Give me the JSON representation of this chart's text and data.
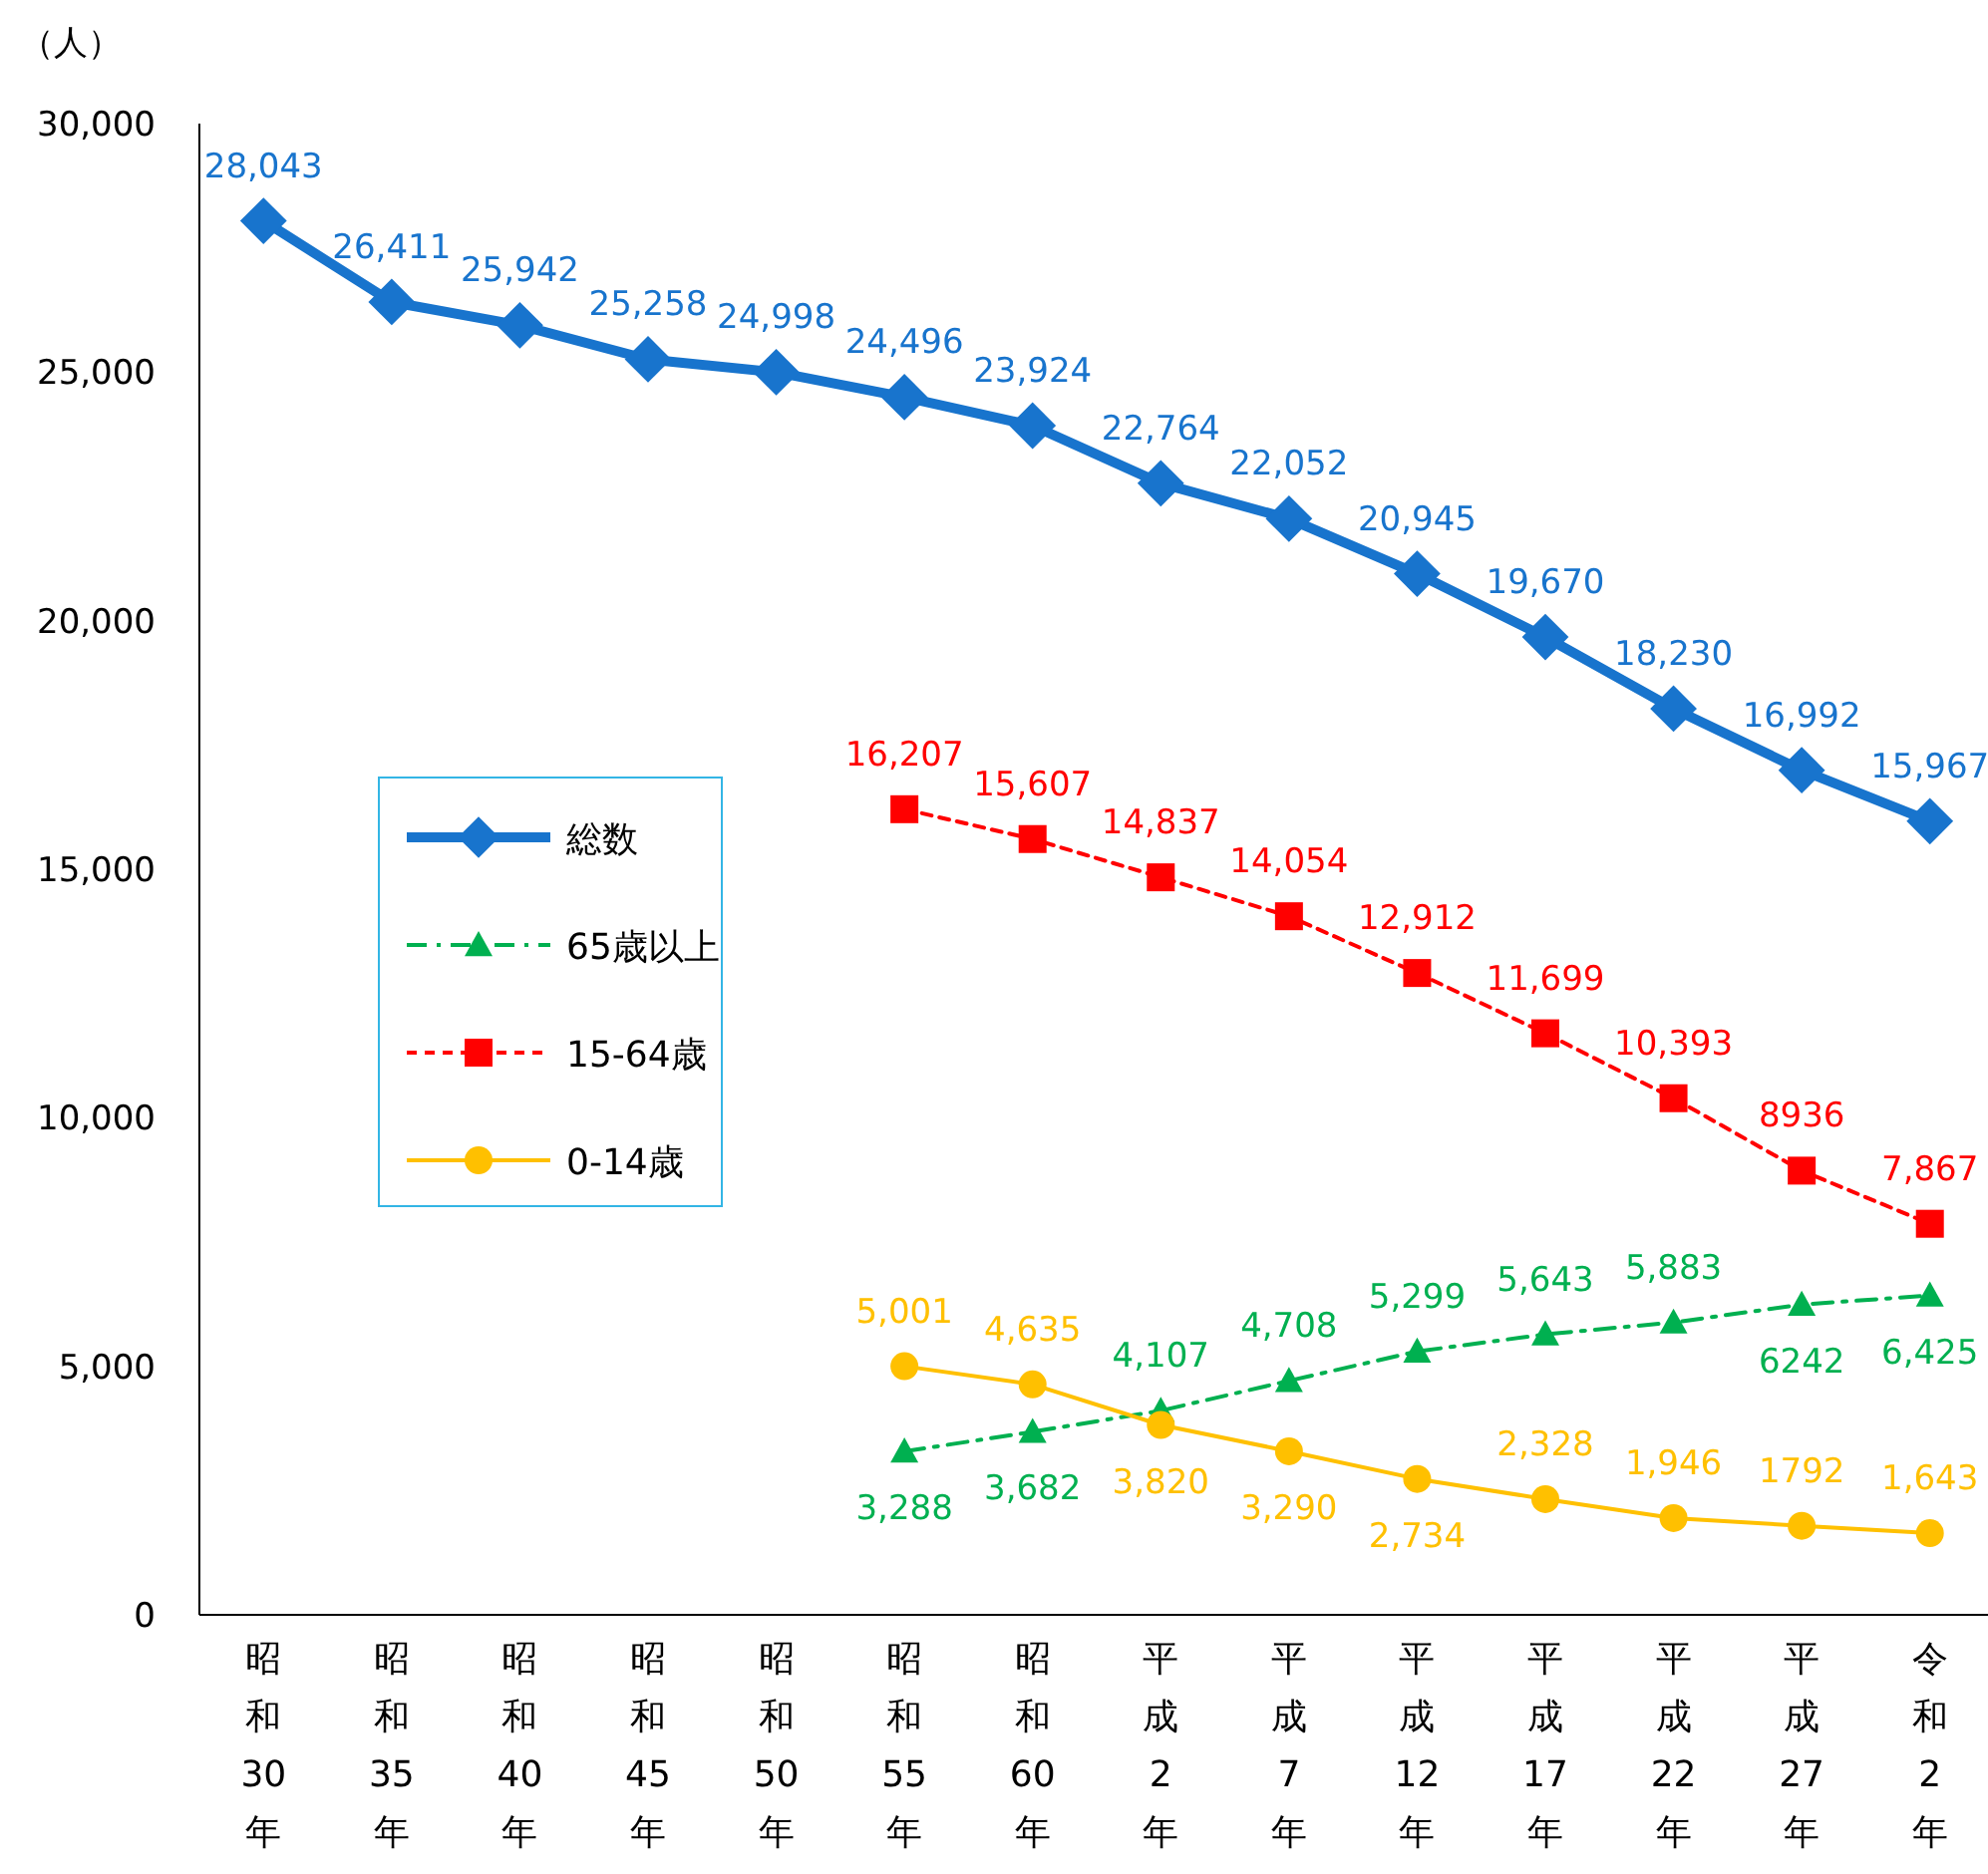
{
  "chart_data": {
    "type": "line",
    "ylabel": "（人）",
    "categories": [
      "昭和30年",
      "昭和35年",
      "昭和40年",
      "昭和45年",
      "昭和50年",
      "昭和55年",
      "昭和60年",
      "平成2年",
      "平成7年",
      "平成12年",
      "平成17年",
      "平成22年",
      "平成27年",
      "令和2年"
    ],
    "ylim": [
      0,
      30000
    ],
    "yticks": [
      {
        "value": 0,
        "label": "0"
      },
      {
        "value": 5000,
        "label": "5,000"
      },
      {
        "value": 10000,
        "label": "10,000"
      },
      {
        "value": 15000,
        "label": "15,000"
      },
      {
        "value": 20000,
        "label": "20,000"
      },
      {
        "value": 25000,
        "label": "25,000"
      },
      {
        "value": 30000,
        "label": "30,000"
      }
    ],
    "grid": false,
    "legend": "left",
    "series": [
      {
        "name": "総数",
        "color": "#1874cd",
        "marker": "diamond",
        "line_style": "solid",
        "values": [
          28043,
          26411,
          25942,
          25258,
          24998,
          24496,
          23924,
          22764,
          22052,
          20945,
          19670,
          18230,
          16992,
          15967
        ],
        "value_labels": [
          "28,043",
          "26,411",
          "25,942",
          "25,258",
          "24,998",
          "24,496",
          "23,924",
          "22,764",
          "22,052",
          "20,945",
          "19,670",
          "18,230",
          "16,992",
          "15,967"
        ]
      },
      {
        "name": "65歳以上",
        "color": "#00b050",
        "marker": "triangle",
        "line_style": "dashdot",
        "values": [
          null,
          null,
          null,
          null,
          null,
          3288,
          3682,
          4107,
          4708,
          5299,
          5643,
          5883,
          6242,
          6425
        ],
        "value_labels": [
          null,
          null,
          null,
          null,
          null,
          "3,288",
          "3,682",
          "4,107",
          "4,708",
          "5,299",
          "5,643",
          "5,883",
          "6242",
          "6,425"
        ]
      },
      {
        "name": "15-64歳",
        "color": "#ff0000",
        "marker": "square",
        "line_style": "dashed",
        "values": [
          null,
          null,
          null,
          null,
          null,
          16207,
          15607,
          14837,
          14054,
          12912,
          11699,
          10393,
          8936,
          7867
        ],
        "value_labels": [
          null,
          null,
          null,
          null,
          null,
          "16,207",
          "15,607",
          "14,837",
          "14,054",
          "12,912",
          "11,699",
          "10,393",
          "8936",
          "7,867"
        ]
      },
      {
        "name": "0-14歳",
        "color": "#ffc000",
        "marker": "circle",
        "line_style": "solid",
        "values": [
          null,
          null,
          null,
          null,
          null,
          5001,
          4635,
          3820,
          3290,
          2734,
          2328,
          1946,
          1792,
          1643
        ],
        "value_labels": [
          null,
          null,
          null,
          null,
          null,
          "5,001",
          "4,635",
          "3,820",
          "3,290",
          "2,734",
          "2,328",
          "1,946",
          "1792",
          "1,643"
        ]
      }
    ]
  }
}
